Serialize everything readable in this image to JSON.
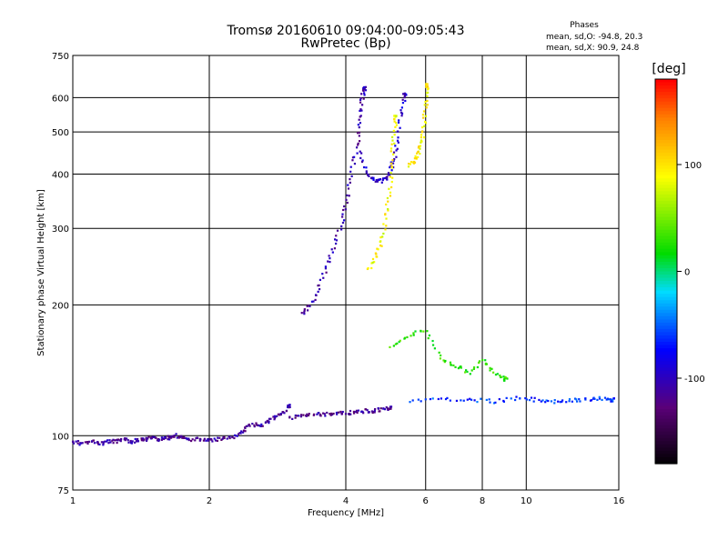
{
  "chart_data": {
    "type": "scatter",
    "title": "Tromsø 20160610 09:04:00-09:05:43",
    "subtitle": "RwPretec (Bp)",
    "xlabel": "Frequency [MHz]",
    "ylabel": "Stationary phase Virtual Height [km]",
    "x_scale": "log",
    "y_scale": "log",
    "xlim": [
      1,
      16
    ],
    "ylim": [
      75,
      750
    ],
    "x_ticks": [
      1,
      2,
      4,
      6,
      8,
      10,
      16
    ],
    "x_tick_labels": [
      "1",
      "2",
      "4",
      "6",
      "8",
      "10",
      "16"
    ],
    "y_ticks": [
      75,
      100,
      200,
      300,
      400,
      500,
      600,
      750
    ],
    "y_tick_labels": [
      "75",
      "100",
      "200",
      "300",
      "400",
      "500",
      "600",
      "750"
    ],
    "grid": true,
    "phases": {
      "title": "Phases",
      "line_o": "mean, sd,O: -94.8, 20.3",
      "line_x": "mean, sd,X:  90.9, 24.8"
    },
    "colorbar": {
      "label": "[deg]",
      "range": [
        -180,
        180
      ],
      "ticks": [
        100,
        0,
        -100
      ],
      "tick_labels": [
        "100",
        "0",
        "-100"
      ],
      "position": "right"
    },
    "traces": [
      {
        "name_hint": "E-layer trace",
        "phase": -110,
        "points": [
          [
            1.0,
            97
          ],
          [
            1.05,
            96
          ],
          [
            1.1,
            97
          ],
          [
            1.15,
            96
          ],
          [
            1.2,
            97
          ],
          [
            1.25,
            97
          ],
          [
            1.3,
            98
          ],
          [
            1.35,
            97
          ],
          [
            1.4,
            98
          ],
          [
            1.45,
            98
          ],
          [
            1.5,
            99
          ],
          [
            1.55,
            98
          ],
          [
            1.6,
            99
          ],
          [
            1.65,
            99
          ],
          [
            1.7,
            100
          ],
          [
            1.75,
            99
          ],
          [
            1.8,
            98
          ],
          [
            1.9,
            98
          ],
          [
            2.0,
            98
          ],
          [
            2.1,
            98
          ],
          [
            2.2,
            99
          ],
          [
            2.3,
            100
          ],
          [
            2.4,
            104
          ],
          [
            2.5,
            106
          ],
          [
            2.6,
            106
          ],
          [
            2.7,
            108
          ],
          [
            2.8,
            110
          ],
          [
            2.9,
            113
          ],
          [
            3.0,
            117
          ]
        ]
      },
      {
        "name_hint": "O low trace",
        "phase": -115,
        "points": [
          [
            3.0,
            110
          ],
          [
            3.2,
            111
          ],
          [
            3.4,
            112
          ],
          [
            3.6,
            112
          ],
          [
            3.8,
            113
          ],
          [
            4.0,
            113
          ],
          [
            4.2,
            113
          ],
          [
            4.4,
            114
          ],
          [
            4.6,
            114
          ],
          [
            4.8,
            115
          ],
          [
            5.0,
            116
          ]
        ]
      },
      {
        "name_hint": "O F trace",
        "phase": -105,
        "points": [
          [
            3.2,
            190
          ],
          [
            3.35,
            200
          ],
          [
            3.5,
            220
          ],
          [
            3.65,
            250
          ],
          [
            3.8,
            280
          ],
          [
            3.95,
            320
          ],
          [
            4.05,
            360
          ],
          [
            4.15,
            420
          ],
          [
            4.25,
            480
          ],
          [
            4.3,
            540
          ],
          [
            4.35,
            600
          ],
          [
            4.4,
            630
          ]
        ]
      },
      {
        "name_hint": "O F2 trace",
        "phase": -95,
        "points": [
          [
            4.3,
            450
          ],
          [
            4.45,
            400
          ],
          [
            4.6,
            390
          ],
          [
            4.75,
            385
          ],
          [
            4.9,
            390
          ],
          [
            5.0,
            400
          ],
          [
            5.1,
            430
          ],
          [
            5.2,
            480
          ],
          [
            5.3,
            550
          ],
          [
            5.4,
            610
          ]
        ]
      },
      {
        "name_hint": "X trace",
        "phase": 90,
        "points": [
          [
            4.5,
            240
          ],
          [
            4.65,
            260
          ],
          [
            4.8,
            280
          ],
          [
            4.9,
            320
          ],
          [
            5.0,
            360
          ],
          [
            5.05,
            420
          ],
          [
            5.1,
            480
          ],
          [
            5.15,
            540
          ]
        ]
      },
      {
        "name_hint": "X F2 trace",
        "phase": 95,
        "points": [
          [
            5.5,
            420
          ],
          [
            5.7,
            430
          ],
          [
            5.8,
            450
          ],
          [
            5.9,
            480
          ],
          [
            5.95,
            520
          ],
          [
            6.0,
            580
          ],
          [
            6.05,
            640
          ]
        ]
      },
      {
        "name_hint": "spread low",
        "phase": -60,
        "points": [
          [
            5.5,
            120
          ],
          [
            6.5,
            122
          ],
          [
            7.5,
            121
          ],
          [
            8.5,
            120
          ],
          [
            9.5,
            122
          ],
          [
            10.5,
            121
          ],
          [
            11.5,
            120
          ],
          [
            12.5,
            121
          ],
          [
            13.5,
            121
          ],
          [
            14.5,
            122
          ],
          [
            15.5,
            121
          ]
        ]
      },
      {
        "name_hint": "spread mid",
        "phase": 30,
        "points": [
          [
            5.0,
            160
          ],
          [
            5.5,
            170
          ],
          [
            6.0,
            175
          ],
          [
            6.5,
            150
          ],
          [
            7.0,
            145
          ],
          [
            7.5,
            140
          ],
          [
            8.0,
            150
          ],
          [
            8.5,
            140
          ],
          [
            9.0,
            135
          ]
        ]
      }
    ]
  }
}
